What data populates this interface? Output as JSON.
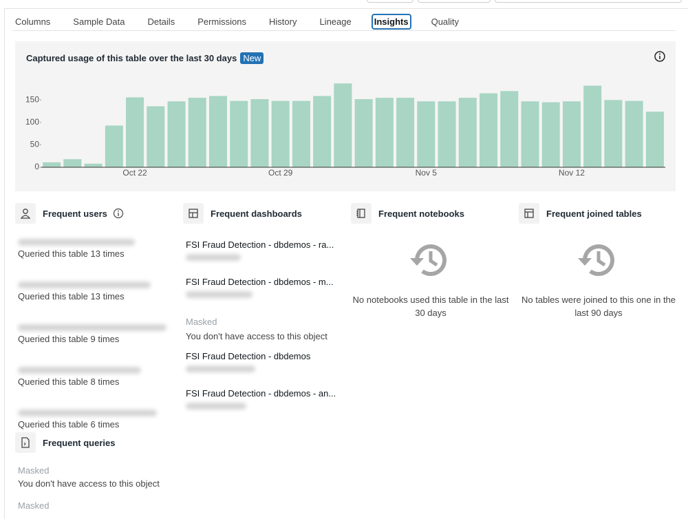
{
  "tabs": [
    "Columns",
    "Sample Data",
    "Details",
    "Permissions",
    "History",
    "Lineage",
    "Insights",
    "Quality"
  ],
  "active_tab_index": 6,
  "chart_data": {
    "type": "bar",
    "title": "Captured usage of this table over the last 30 days",
    "badge": "New",
    "categories": [
      null,
      null,
      null,
      null,
      "Oct 22",
      null,
      null,
      null,
      null,
      null,
      null,
      "Oct 29",
      null,
      null,
      null,
      null,
      null,
      null,
      "Nov 5",
      null,
      null,
      null,
      null,
      null,
      null,
      "Nov 12",
      null,
      null,
      null,
      null
    ],
    "values": [
      11,
      18,
      8,
      93,
      156,
      136,
      147,
      155,
      159,
      148,
      152,
      148,
      148,
      159,
      187,
      152,
      155,
      155,
      147,
      147,
      155,
      165,
      170,
      147,
      145,
      147,
      182,
      150,
      148,
      124
    ],
    "color": "#a8d5c4",
    "ylim": [
      0,
      195
    ],
    "yticks": [
      0,
      50,
      100,
      150
    ]
  },
  "users": {
    "title": "Frequent users",
    "items": [
      "Queried this table 13 times",
      "Queried this table 13 times",
      "Queried this table 9 times",
      "Queried this table 8 times",
      "Queried this table 6 times"
    ]
  },
  "dashboards": {
    "title": "Frequent dashboards",
    "items": [
      {
        "name": "FSI Fraud Detection - dbdemos - ra..."
      },
      {
        "name": "FSI Fraud Detection - dbdemos - m..."
      },
      {
        "masked": "Masked",
        "note": "You don't have access to this object"
      },
      {
        "name": "FSI Fraud Detection - dbdemos"
      },
      {
        "name": "FSI Fraud Detection - dbdemos - an..."
      }
    ]
  },
  "notebooks": {
    "title": "Frequent notebooks",
    "empty": "No notebooks used this table in the last 30 days"
  },
  "joined": {
    "title": "Frequent joined tables",
    "empty": "No tables were joined to this one in the last 90 days"
  },
  "queries": {
    "title": "Frequent queries",
    "items": [
      {
        "masked": "Masked",
        "note": "You don't have access to this object"
      },
      {
        "masked": "Masked"
      }
    ]
  }
}
